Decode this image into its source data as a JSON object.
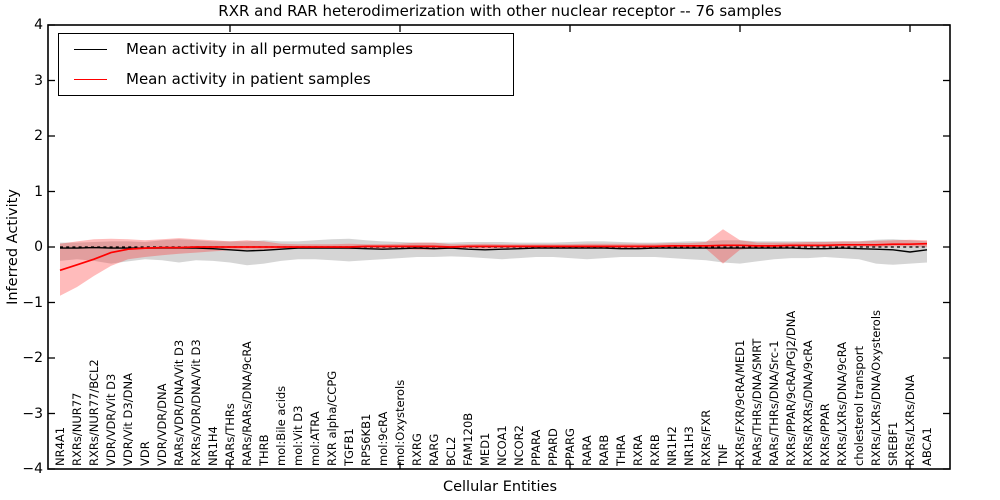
{
  "chart_data": {
    "type": "line",
    "title": "RXR and RAR heterodimerization with other nuclear receptor -- 76 samples",
    "xlabel": "Cellular Entities",
    "ylabel": "Inferred Activity",
    "ylim": [
      -4,
      4
    ],
    "grid": false,
    "yticks": {
      "values": [
        4,
        3,
        2,
        1,
        0,
        -1,
        -2,
        -3,
        -4
      ],
      "labels": [
        "4",
        "3",
        "2",
        "1",
        "0",
        "−1",
        "−2",
        "−3",
        "−4"
      ]
    },
    "xtick_indices": [
      10,
      20,
      30,
      40,
      50
    ],
    "legend": {
      "position": "upper left",
      "entries": [
        {
          "label": "Mean activity in all permuted samples",
          "color": "#000000"
        },
        {
          "label": "Mean activity in patient samples",
          "color": "#ff0000"
        }
      ]
    },
    "categories": [
      "NR4A1",
      "RXRs/NUR77",
      "RXRs/NUR77/BCL2",
      "VDR/VDR/Vit D3",
      "VDR/Vit D3/DNA",
      "VDR",
      "VDR/VDR/DNA",
      "RARs/VDR/DNA/Vit D3",
      "RXRs/VDR/DNA/Vit D3",
      "NR1H4",
      "RARs/THRs",
      "RARs/RARs/DNA/9cRA",
      "THRB",
      "mol:Bile acids",
      "mol:Vit D3",
      "mol:ATRA",
      "RXR alpha/CCPG",
      "TGFB1",
      "RPS6KB1",
      "mol:9cRA",
      "mol:Oxysterols",
      "RXRG",
      "RARG",
      "BCL2",
      "FAM120B",
      "MED1",
      "NCOA1",
      "NCOR2",
      "PPARA",
      "PPARD",
      "PPARG",
      "RARA",
      "RARB",
      "THRA",
      "RXRA",
      "RXRB",
      "NR1H2",
      "NR1H3",
      "RXRs/FXR",
      "TNF",
      "RXRs/FXR/9cRA/MED1",
      "RARs/THRs/DNA/SMRT",
      "RARs/THRs/DNA/Src-1",
      "RXRs/PPAR/9cRA/PGJ2/DNA",
      "RXRs/RXRs/DNA/9cRA",
      "RXRs/PPAR",
      "RXRs/LXRs/DNA/9cRA",
      "cholesterol transport",
      "RXRs/LXRs/DNA/Oxysterols",
      "SREBF1",
      "RXRs/LXRs/DNA",
      "ABCA1"
    ],
    "series": [
      {
        "name": "Mean activity in all permuted samples",
        "color": "#000000",
        "values": [
          -0.02,
          -0.02,
          -0.01,
          -0.02,
          -0.02,
          -0.02,
          -0.02,
          -0.02,
          -0.02,
          -0.03,
          -0.05,
          -0.07,
          -0.06,
          -0.04,
          -0.02,
          -0.02,
          -0.02,
          -0.02,
          -0.03,
          -0.04,
          -0.03,
          -0.02,
          -0.03,
          -0.02,
          -0.04,
          -0.05,
          -0.04,
          -0.03,
          -0.02,
          -0.02,
          -0.02,
          -0.02,
          -0.02,
          -0.03,
          -0.03,
          -0.02,
          -0.02,
          -0.02,
          -0.02,
          -0.02,
          -0.02,
          -0.02,
          -0.02,
          -0.02,
          -0.03,
          -0.03,
          -0.02,
          -0.03,
          -0.04,
          -0.05,
          -0.09,
          -0.05
        ]
      },
      {
        "name": "Mean activity in patient samples",
        "color": "#ff0000",
        "values": [
          -0.42,
          -0.32,
          -0.22,
          -0.1,
          -0.04,
          -0.02,
          -0.01,
          -0.01,
          0.0,
          0.0,
          0.0,
          0.0,
          0.0,
          0.0,
          0.0,
          0.0,
          0.0,
          0.0,
          0.01,
          0.01,
          0.01,
          0.01,
          0.01,
          0.0,
          0.01,
          0.01,
          0.01,
          0.01,
          0.01,
          0.01,
          0.01,
          0.01,
          0.01,
          0.01,
          0.01,
          0.01,
          0.02,
          0.02,
          0.02,
          0.03,
          0.03,
          0.02,
          0.02,
          0.03,
          0.03,
          0.03,
          0.04,
          0.04,
          0.04,
          0.05,
          0.05,
          0.06
        ]
      }
    ],
    "bands": [
      {
        "name": "permuted samples range",
        "color": "#909090",
        "opacity": 0.38,
        "low": [
          -0.25,
          -0.22,
          -0.25,
          -0.3,
          -0.26,
          -0.22,
          -0.24,
          -0.28,
          -0.24,
          -0.25,
          -0.28,
          -0.33,
          -0.3,
          -0.25,
          -0.22,
          -0.22,
          -0.24,
          -0.26,
          -0.24,
          -0.22,
          -0.2,
          -0.18,
          -0.18,
          -0.17,
          -0.18,
          -0.2,
          -0.22,
          -0.2,
          -0.18,
          -0.18,
          -0.2,
          -0.22,
          -0.2,
          -0.18,
          -0.18,
          -0.18,
          -0.2,
          -0.22,
          -0.24,
          -0.28,
          -0.3,
          -0.26,
          -0.22,
          -0.2,
          -0.2,
          -0.18,
          -0.2,
          -0.22,
          -0.3,
          -0.32,
          -0.3,
          -0.28
        ],
        "high": [
          0.08,
          0.08,
          0.09,
          0.1,
          0.1,
          0.09,
          0.12,
          0.14,
          0.12,
          0.1,
          0.1,
          0.1,
          0.12,
          0.1,
          0.1,
          0.12,
          0.14,
          0.15,
          0.12,
          0.1,
          0.09,
          0.08,
          0.08,
          0.08,
          0.09,
          0.09,
          0.09,
          0.08,
          0.08,
          0.08,
          0.09,
          0.1,
          0.1,
          0.09,
          0.08,
          0.08,
          0.09,
          0.1,
          0.1,
          0.12,
          0.12,
          0.1,
          0.1,
          0.1,
          0.1,
          0.1,
          0.1,
          0.1,
          0.13,
          0.14,
          0.12,
          0.1
        ]
      },
      {
        "name": "patient samples range",
        "color": "#ff2a2a",
        "opacity": 0.32,
        "low": [
          -0.88,
          -0.72,
          -0.52,
          -0.34,
          -0.22,
          -0.18,
          -0.15,
          -0.12,
          -0.1,
          -0.08,
          -0.06,
          -0.05,
          -0.05,
          -0.04,
          -0.03,
          -0.03,
          -0.03,
          -0.04,
          -0.03,
          -0.03,
          -0.03,
          -0.05,
          -0.05,
          -0.03,
          -0.02,
          -0.03,
          -0.02,
          -0.02,
          -0.02,
          -0.02,
          -0.02,
          -0.02,
          -0.02,
          -0.02,
          -0.02,
          -0.02,
          -0.01,
          -0.01,
          -0.03,
          -0.3,
          -0.05,
          -0.01,
          -0.01,
          0.0,
          0.0,
          0.0,
          0.0,
          0.01,
          0.0,
          0.01,
          0.01,
          0.0
        ],
        "high": [
          0.06,
          0.1,
          0.14,
          0.15,
          0.14,
          0.12,
          0.14,
          0.16,
          0.14,
          0.12,
          0.1,
          0.12,
          0.1,
          0.06,
          0.05,
          0.05,
          0.05,
          0.06,
          0.05,
          0.05,
          0.06,
          0.08,
          0.08,
          0.05,
          0.05,
          0.06,
          0.05,
          0.05,
          0.05,
          0.05,
          0.05,
          0.06,
          0.06,
          0.06,
          0.06,
          0.06,
          0.07,
          0.07,
          0.09,
          0.32,
          0.12,
          0.08,
          0.08,
          0.08,
          0.09,
          0.09,
          0.1,
          0.1,
          0.11,
          0.12,
          0.13,
          0.12
        ]
      }
    ],
    "zero_line": 0
  }
}
